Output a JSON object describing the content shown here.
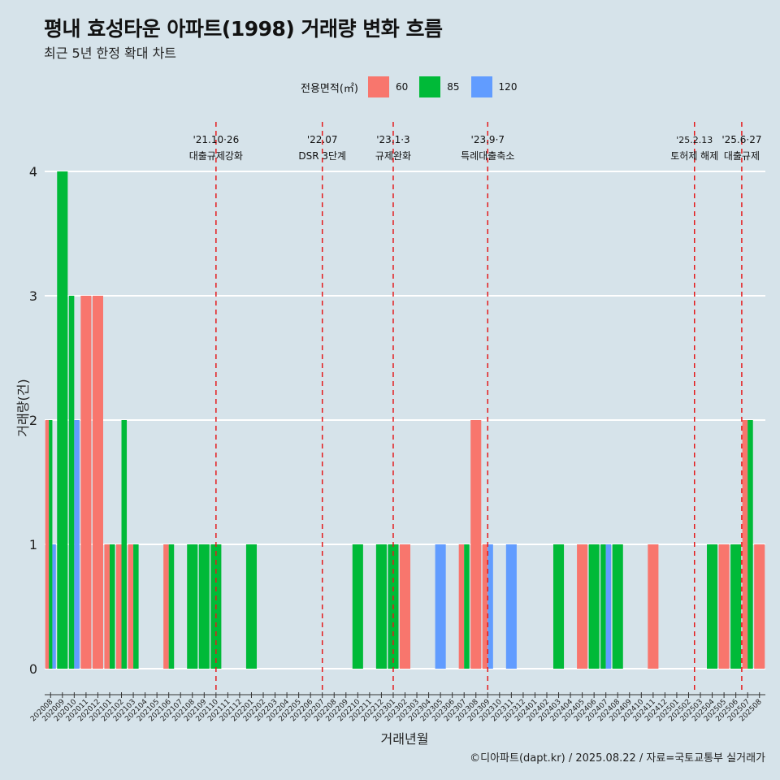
{
  "title": "평내 효성타운 아파트(1998) 거래량 변화 흐름",
  "subtitle": "최근 5년 한정 확대 차트",
  "caption": "©디아파트(dapt.kr) / 2025.08.22 / 자료=국토교통부 실거래가",
  "legend": {
    "title": "전용면적(㎡)",
    "items": [
      {
        "label": "60",
        "color": "#f8766d"
      },
      {
        "label": "85",
        "color": "#00ba38"
      },
      {
        "label": "120",
        "color": "#619cff"
      }
    ]
  },
  "chart_data": {
    "type": "bar",
    "xlabel": "거래년월",
    "ylabel": "거래량(건)",
    "ylim": [
      0,
      4
    ],
    "yticks": [
      0,
      1,
      2,
      3,
      4
    ],
    "grid": true,
    "legend_position": "top",
    "categories": [
      "202008",
      "202009",
      "202010",
      "202011",
      "202012",
      "202101",
      "202102",
      "202103",
      "202104",
      "202105",
      "202106",
      "202107",
      "202108",
      "202109",
      "202110",
      "202111",
      "202112",
      "202201",
      "202202",
      "202203",
      "202204",
      "202205",
      "202206",
      "202207",
      "202208",
      "202209",
      "202210",
      "202211",
      "202212",
      "202301",
      "202302",
      "202303",
      "202304",
      "202305",
      "202306",
      "202307",
      "202308",
      "202309",
      "202310",
      "202311",
      "202312",
      "202401",
      "202402",
      "202403",
      "202404",
      "202405",
      "202406",
      "202407",
      "202408",
      "202409",
      "202410",
      "202411",
      "202412",
      "202501",
      "202502",
      "202503",
      "202504",
      "202505",
      "202506",
      "202507",
      "202508"
    ],
    "series": [
      {
        "name": "60",
        "color": "#f8766d",
        "values": [
          2,
          0,
          0,
          3,
          3,
          1,
          1,
          1,
          0,
          0,
          1,
          0,
          0,
          0,
          0,
          0,
          0,
          0,
          0,
          0,
          0,
          0,
          0,
          0,
          0,
          0,
          0,
          0,
          0,
          0,
          1,
          0,
          0,
          0,
          0,
          1,
          2,
          1,
          0,
          0,
          0,
          0,
          0,
          0,
          0,
          1,
          0,
          0,
          0,
          0,
          0,
          1,
          0,
          0,
          0,
          0,
          0,
          1,
          0,
          2,
          1
        ]
      },
      {
        "name": "85",
        "color": "#00ba38",
        "values": [
          2,
          4,
          3,
          0,
          0,
          1,
          2,
          1,
          0,
          0,
          1,
          0,
          1,
          1,
          1,
          0,
          0,
          1,
          0,
          0,
          0,
          0,
          0,
          0,
          0,
          0,
          1,
          0,
          1,
          1,
          0,
          0,
          0,
          0,
          0,
          1,
          0,
          0,
          0,
          0,
          0,
          0,
          0,
          1,
          0,
          0,
          1,
          1,
          1,
          0,
          0,
          0,
          0,
          0,
          0,
          0,
          1,
          0,
          1,
          2,
          0
        ]
      },
      {
        "name": "120",
        "color": "#619cff",
        "values": [
          1,
          0,
          2,
          0,
          0,
          0,
          0,
          0,
          0,
          0,
          0,
          0,
          0,
          0,
          0,
          0,
          0,
          0,
          0,
          0,
          0,
          0,
          0,
          0,
          0,
          0,
          0,
          0,
          0,
          0,
          0,
          0,
          0,
          1,
          0,
          0,
          0,
          1,
          0,
          1,
          0,
          0,
          0,
          0,
          0,
          0,
          0,
          1,
          0,
          0,
          0,
          0,
          0,
          0,
          0,
          0,
          0,
          0,
          0,
          0,
          0
        ]
      }
    ],
    "annotations": [
      {
        "x": 14.0,
        "line1": "'21.10·26",
        "line2": "대출규제강화"
      },
      {
        "x": 23.0,
        "line1": "'22.07",
        "line2": "DSR 3단계"
      },
      {
        "x": 29.0,
        "line1": "'23.1·3",
        "line2": "규제완화"
      },
      {
        "x": 37.0,
        "line1": "'23.9·7",
        "line2": "특례대출축소"
      },
      {
        "x": 54.5,
        "line1": "'25.2.13",
        "line2": "토허제 해제"
      },
      {
        "x": 58.5,
        "line1": "'25.6·27",
        "line2": "대출규제"
      }
    ]
  }
}
